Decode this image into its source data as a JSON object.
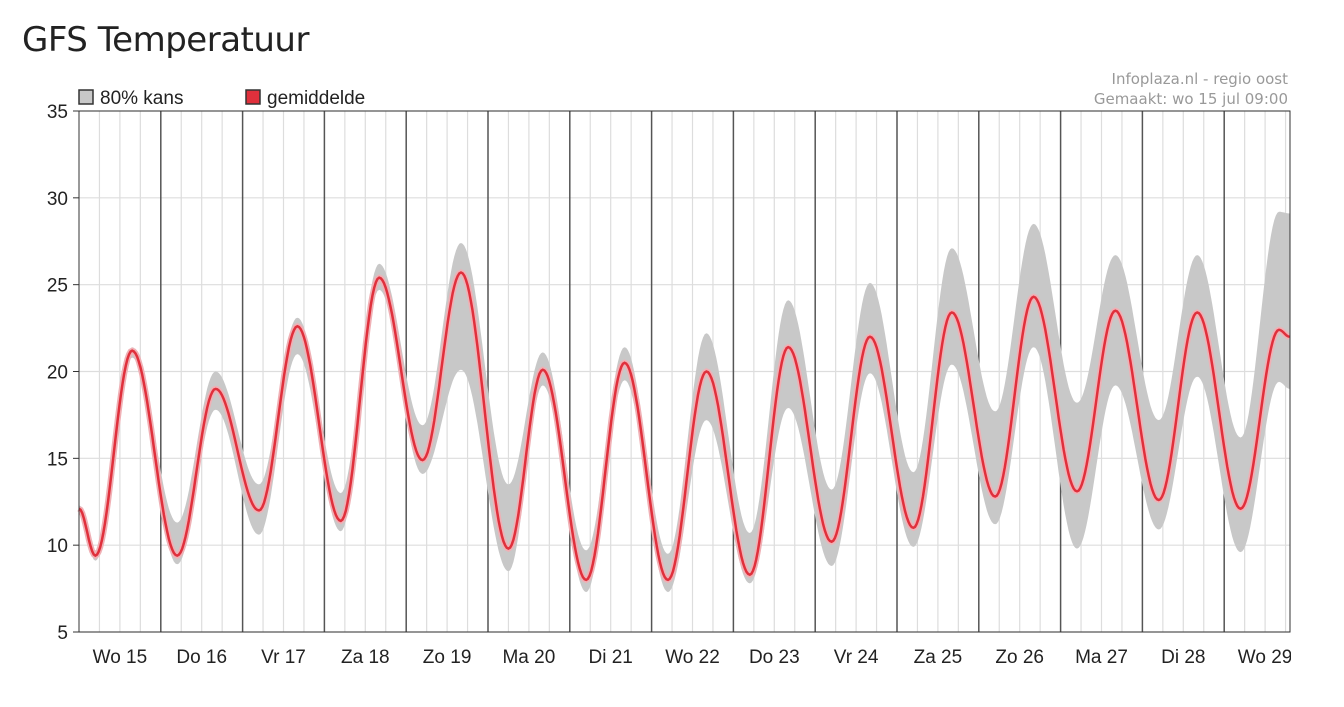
{
  "page": {
    "title": "GFS Temperatuur"
  },
  "source": {
    "line1": "Infoplaza.nl - regio oost",
    "line2": "Gemaakt: wo 15 jul 09:00"
  },
  "colors": {
    "band": "#c8c8c8",
    "mean": "#e0303c",
    "mean_edge": "#f0b0b5",
    "grid": "#dddddd",
    "day_line": "#555555"
  },
  "chart_data": {
    "type": "line",
    "title": "GFS Temperatuur",
    "ylim": [
      5,
      35
    ],
    "yticks": [
      5,
      10,
      15,
      20,
      25,
      30,
      35
    ],
    "x_unit": "days",
    "xlim": [
      0,
      14.8
    ],
    "grid": true,
    "legend": [
      {
        "label": "80% kans",
        "kind": "band"
      },
      {
        "label": "gemiddelde",
        "kind": "line"
      }
    ],
    "day_labels": [
      "Wo 15",
      "Do 16",
      "Vr 17",
      "Za 18",
      "Zo 19",
      "Ma 20",
      "Di 21",
      "Wo 22",
      "Do 23",
      "Vr 24",
      "Za 25",
      "Zo 26",
      "Ma 27",
      "Di 28",
      "Wo 29"
    ],
    "series": [
      {
        "name": "gemiddelde",
        "x": [
          0,
          0.2,
          0.65,
          1.2,
          1.67,
          2.2,
          2.67,
          3.2,
          3.67,
          4.2,
          4.67,
          5.25,
          5.67,
          6.2,
          6.67,
          7.2,
          7.67,
          8.2,
          8.67,
          9.2,
          9.67,
          10.2,
          10.67,
          11.2,
          11.67,
          12.2,
          12.67,
          13.2,
          13.67,
          14.2,
          14.67,
          14.8
        ],
        "values": [
          12.1,
          9.4,
          21.2,
          9.4,
          19.0,
          12.0,
          22.6,
          11.4,
          25.4,
          14.9,
          25.7,
          9.8,
          20.1,
          8.0,
          20.5,
          8.0,
          20.0,
          8.3,
          21.4,
          10.2,
          22.0,
          11.0,
          23.4,
          12.8,
          24.3,
          13.1,
          23.5,
          12.6,
          23.4,
          12.1,
          22.4,
          22.0
        ]
      },
      {
        "name": "80% kans (boven)",
        "x": [
          0,
          0.2,
          0.65,
          1.2,
          1.67,
          2.2,
          2.67,
          3.2,
          3.67,
          4.2,
          4.67,
          5.25,
          5.67,
          6.2,
          6.67,
          7.2,
          7.67,
          8.2,
          8.67,
          9.2,
          9.67,
          10.2,
          10.67,
          11.2,
          11.67,
          12.2,
          12.67,
          13.2,
          13.67,
          14.2,
          14.67,
          14.8
        ],
        "values": [
          12.3,
          9.7,
          21.4,
          11.3,
          20.0,
          13.5,
          23.1,
          13.0,
          26.2,
          16.9,
          27.4,
          13.5,
          21.1,
          9.7,
          21.4,
          9.5,
          22.2,
          10.7,
          24.1,
          13.2,
          25.1,
          14.2,
          27.1,
          17.7,
          28.5,
          18.2,
          26.7,
          17.2,
          26.7,
          16.2,
          29.2,
          29.1
        ]
      },
      {
        "name": "80% kans (onder)",
        "x": [
          0,
          0.2,
          0.65,
          1.2,
          1.67,
          2.2,
          2.67,
          3.2,
          3.67,
          4.2,
          4.67,
          5.25,
          5.67,
          6.2,
          6.67,
          7.2,
          7.67,
          8.2,
          8.67,
          9.2,
          9.67,
          10.2,
          10.67,
          11.2,
          11.67,
          12.2,
          12.67,
          13.2,
          13.67,
          14.2,
          14.67,
          14.8
        ],
        "values": [
          11.9,
          9.1,
          20.8,
          8.9,
          17.8,
          10.6,
          21.0,
          10.8,
          24.7,
          14.1,
          20.1,
          8.5,
          19.2,
          7.3,
          19.5,
          7.3,
          17.2,
          7.8,
          17.9,
          8.8,
          19.9,
          9.9,
          20.4,
          11.2,
          21.4,
          9.8,
          19.2,
          10.9,
          19.7,
          9.6,
          19.4,
          19.0
        ]
      }
    ]
  }
}
